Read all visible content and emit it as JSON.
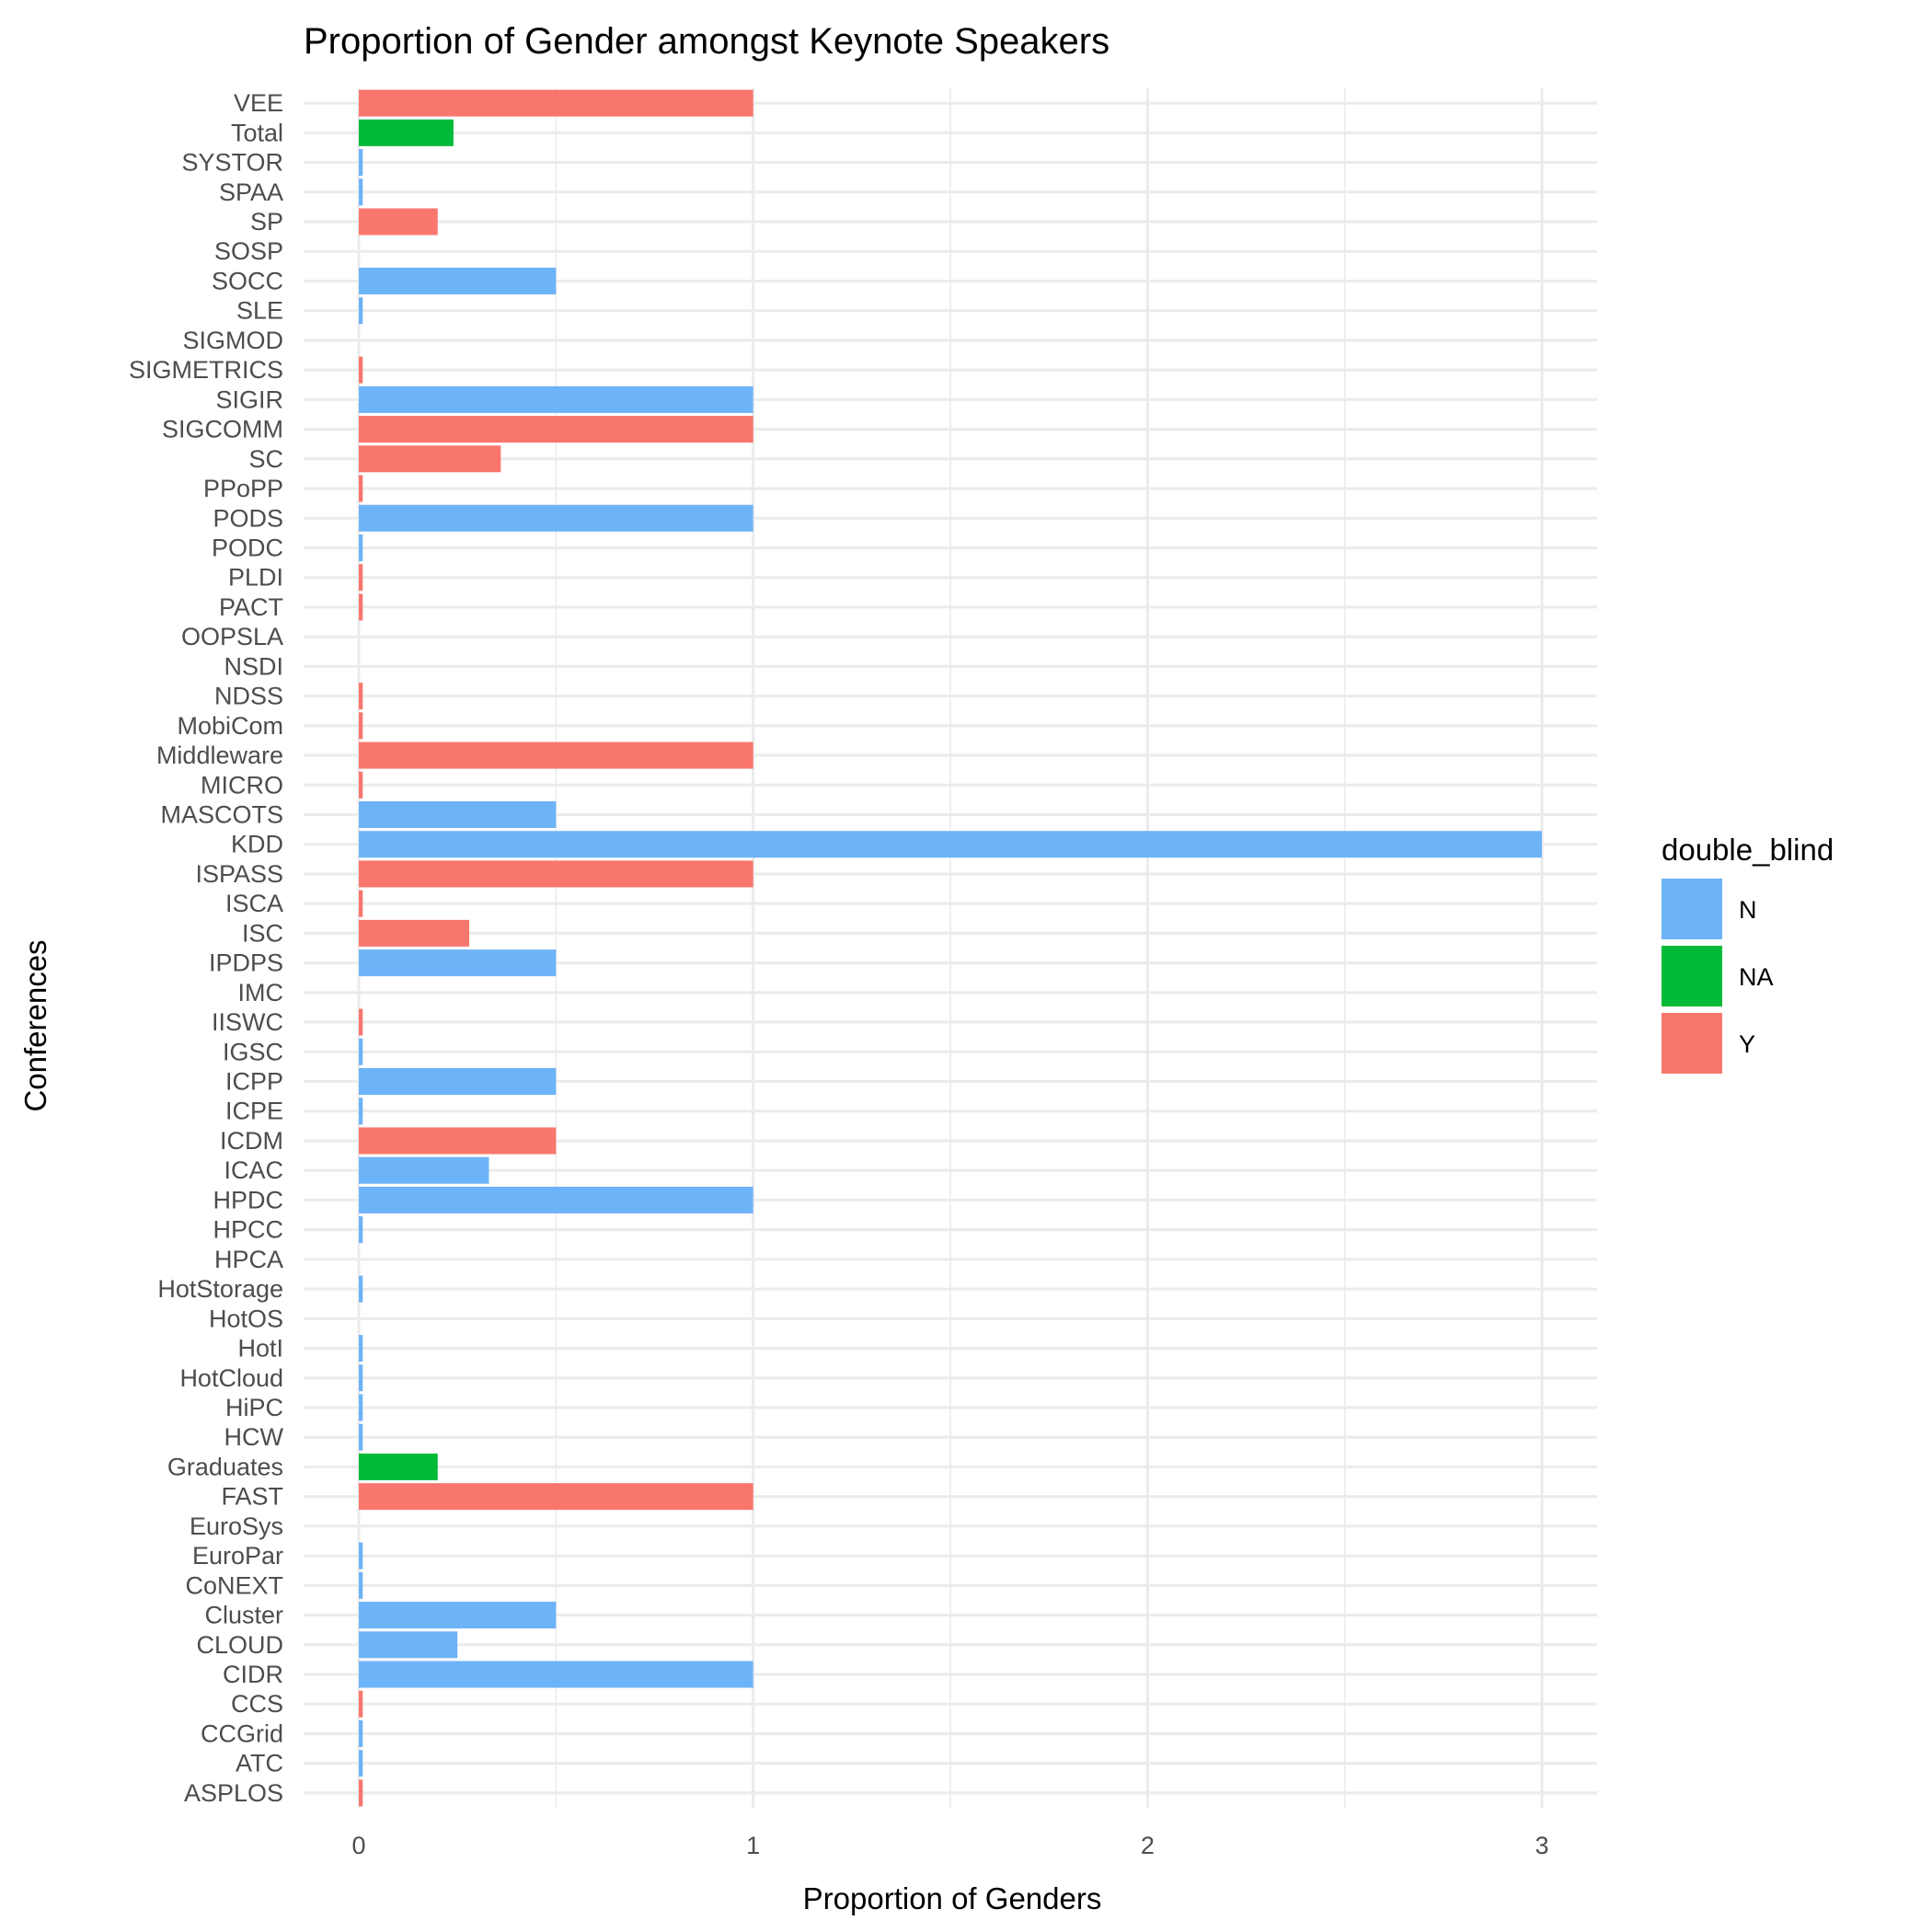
{
  "chart_data": {
    "type": "bar",
    "orientation": "horizontal",
    "title": "Proportion of Gender amongst Keynote Speakers",
    "xlabel": "Proportion of Genders",
    "ylabel": "Conferences",
    "xlim": [
      -0.14,
      3.14
    ],
    "x_ticks": [
      0,
      1,
      2,
      3
    ],
    "grid": true,
    "legend": {
      "title": "double_blind",
      "position": "right",
      "entries": [
        {
          "key": "N",
          "label": "N",
          "color": "#6db3f7"
        },
        {
          "key": "NA",
          "label": "NA",
          "color": "#00ba38"
        },
        {
          "key": "Y",
          "label": "Y",
          "color": "#f8766d"
        }
      ]
    },
    "categories": [
      "VEE",
      "Total",
      "SYSTOR",
      "SPAA",
      "SP",
      "SOSP",
      "SOCC",
      "SLE",
      "SIGMOD",
      "SIGMETRICS",
      "SIGIR",
      "SIGCOMM",
      "SC",
      "PPoPP",
      "PODS",
      "PODC",
      "PLDI",
      "PACT",
      "OOPSLA",
      "NSDI",
      "NDSS",
      "MobiCom",
      "Middleware",
      "MICRO",
      "MASCOTS",
      "KDD",
      "ISPASS",
      "ISCA",
      "ISC",
      "IPDPS",
      "IMC",
      "IISWC",
      "IGSC",
      "ICPP",
      "ICPE",
      "ICDM",
      "ICAC",
      "HPDC",
      "HPCC",
      "HPCA",
      "HotStorage",
      "HotOS",
      "HotI",
      "HotCloud",
      "HiPC",
      "HCW",
      "Graduates",
      "FAST",
      "EuroSys",
      "EuroPar",
      "CoNEXT",
      "Cluster",
      "CLOUD",
      "CIDR",
      "CCS",
      "CCGrid",
      "ATC",
      "ASPLOS"
    ],
    "values": [
      1.0,
      0.24,
      0.01,
      0.01,
      0.2,
      0,
      0.5,
      0.01,
      0,
      0.01,
      1.0,
      1.0,
      0.36,
      0.01,
      1.0,
      0.01,
      0.01,
      0.01,
      0,
      0,
      0.01,
      0.01,
      1.0,
      0.01,
      0.5,
      3.0,
      1.0,
      0.01,
      0.28,
      0.5,
      0,
      0.01,
      0.01,
      0.5,
      0.01,
      0.5,
      0.33,
      1.0,
      0.01,
      0,
      0.01,
      0,
      0.01,
      0.01,
      0.01,
      0.01,
      0.2,
      1.0,
      0,
      0.01,
      0.01,
      0.5,
      0.25,
      1.0,
      0.01,
      0.01,
      0.01,
      0.01
    ],
    "double_blind": [
      "Y",
      "NA",
      "N",
      "N",
      "Y",
      "N",
      "N",
      "N",
      "N",
      "Y",
      "N",
      "Y",
      "Y",
      "Y",
      "N",
      "N",
      "Y",
      "Y",
      "N",
      "N",
      "Y",
      "Y",
      "Y",
      "Y",
      "N",
      "N",
      "Y",
      "Y",
      "Y",
      "N",
      "N",
      "Y",
      "N",
      "N",
      "N",
      "Y",
      "N",
      "N",
      "N",
      "N",
      "N",
      "N",
      "N",
      "N",
      "N",
      "N",
      "NA",
      "Y",
      "N",
      "N",
      "N",
      "N",
      "N",
      "N",
      "Y",
      "N",
      "N",
      "Y"
    ]
  }
}
